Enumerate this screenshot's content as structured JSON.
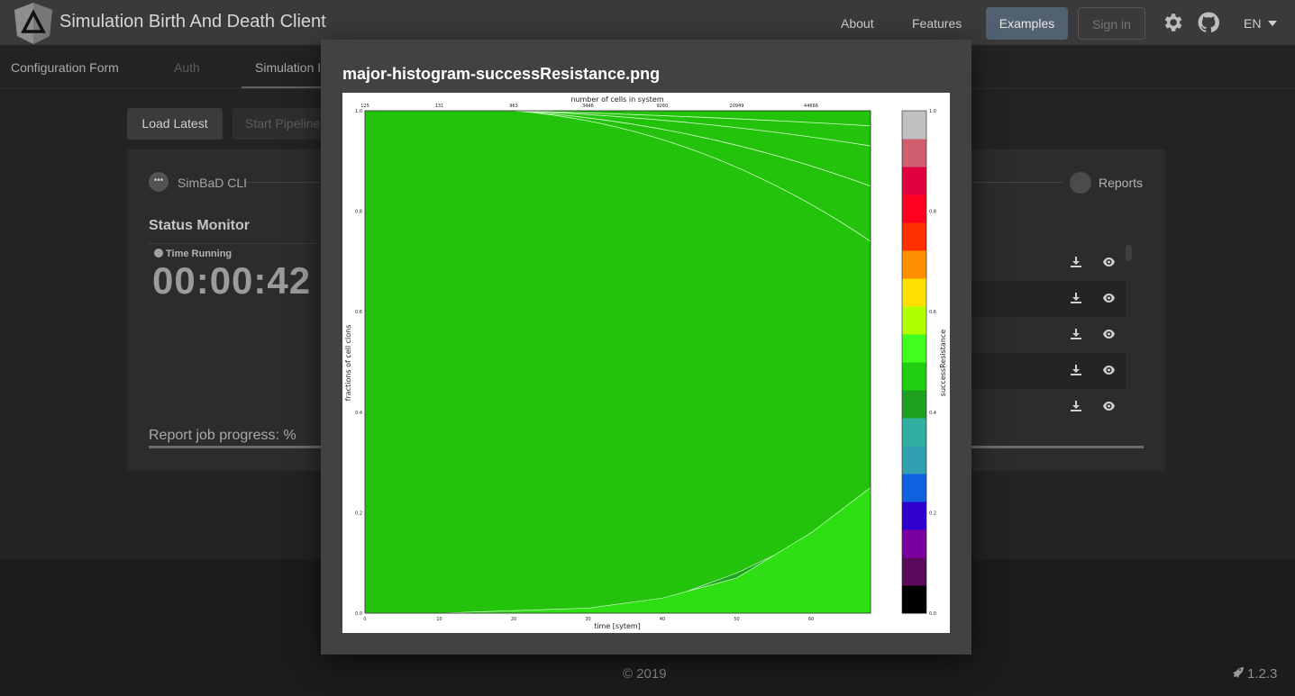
{
  "app": {
    "title": "Simulation Birth And Death Client",
    "nav": {
      "about": "About",
      "features": "Features",
      "examples": "Examples",
      "sign_in": "Sign in",
      "language": "EN"
    }
  },
  "tabs": [
    "Configuration Form",
    "Auth",
    "Simulation I"
  ],
  "toolbar": {
    "load_latest": "Load Latest",
    "start_pipeline": "Start Pipeline"
  },
  "stepper": {
    "first": "SimBaD CLI",
    "last": "Reports"
  },
  "status": {
    "title": "Status Monitor",
    "time_label": "Time Running",
    "time_value": "00:00:42",
    "report_progress": "Report job progress: %"
  },
  "footer": {
    "copyright": "© 2019",
    "version": "1.2.3"
  },
  "modal": {
    "title": "major-histogram-successResistance.png"
  },
  "icons": {
    "logo": "angular-logo-icon",
    "settings": "gear-icon",
    "github": "github-icon",
    "download": "download-icon",
    "view": "eye-icon",
    "clock": "clock-icon",
    "rocket": "rocket-icon"
  },
  "chart_data": {
    "type": "area",
    "title": "number of cells in system",
    "xlabel": "time [sytem]",
    "ylabel": "fractions of cell clons",
    "colorbar_label": "successResistance",
    "x_ticks": [
      "0",
      "10",
      "20",
      "30",
      "40",
      "50",
      "60"
    ],
    "y_ticks": [
      "0.0",
      "0.2",
      "0.4",
      "0.6",
      "0.8",
      "1.0"
    ],
    "top_ticks": [
      "125",
      "131",
      "963",
      "3446",
      "9260",
      "20949",
      "44666"
    ],
    "colorbar_ticks": [
      "0.0",
      "0.2",
      "0.4",
      "0.6",
      "0.8",
      "1.0"
    ],
    "xlim": [
      0,
      68
    ],
    "ylim": [
      0,
      1
    ],
    "colorbar_colors": [
      "#000000",
      "#5a0a5a",
      "#7a00a0",
      "#3000d0",
      "#1060e0",
      "#30a0b0",
      "#30b0a0",
      "#20a020",
      "#20d010",
      "#40ff20",
      "#b0ff00",
      "#ffe000",
      "#ff9000",
      "#ff3000",
      "#ff0020",
      "#e00040",
      "#d06070",
      "#c0c0c0"
    ],
    "series": [
      {
        "color": "#22c30a",
        "x": [
          0,
          10,
          20,
          30,
          40,
          50,
          60,
          68
        ],
        "y": [
          1,
          1,
          1,
          1,
          1,
          1,
          1,
          1
        ]
      },
      {
        "color": "#30aa90",
        "x": [
          0,
          10,
          20,
          30,
          40,
          50,
          60,
          68
        ],
        "y": [
          0,
          0,
          0,
          0,
          0.01,
          0.03,
          0.08,
          0.12
        ]
      },
      {
        "color": "#1ea51e",
        "x": [
          0,
          10,
          20,
          30,
          40,
          50,
          60,
          68
        ],
        "y": [
          0,
          0,
          0,
          0.005,
          0.025,
          0.08,
          0.15,
          0.21
        ]
      },
      {
        "color": "#2ee013",
        "x": [
          0,
          10,
          20,
          30,
          40,
          50,
          60,
          68
        ],
        "y": [
          0,
          0,
          0.005,
          0.01,
          0.03,
          0.07,
          0.16,
          0.25
        ]
      }
    ]
  }
}
